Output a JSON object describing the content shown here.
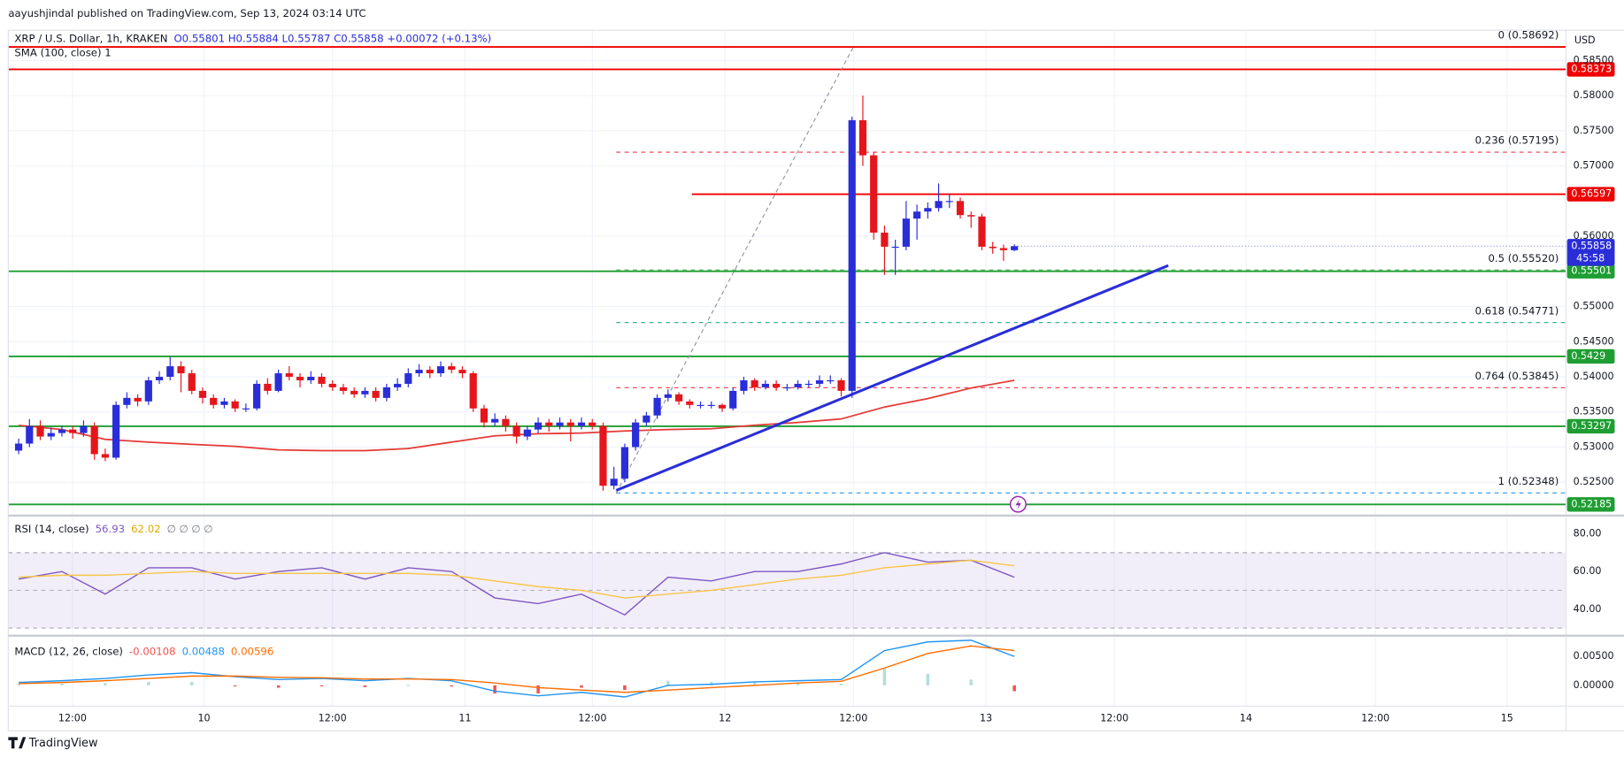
{
  "header": "aayushjindal published on TradingView.com, Sep 13, 2024 03:14 UTC",
  "footer": "TradingView",
  "chart_data": [
    {
      "type": "candlestick",
      "title": "XRP / U.S. Dollar, 1h, KRAKEN",
      "legend_ohlc": "O0.55801 H0.55884 L0.55787 C0.55858 +0.00072 (+0.13%)",
      "currency": "USD",
      "xticks": [
        "12:00",
        "10",
        "12:00",
        "11",
        "12:00",
        "12",
        "12:00",
        "13",
        "12:00",
        "14",
        "12:00",
        "15"
      ],
      "ylim": [
        0.5204,
        0.5893
      ],
      "yticks": [
        {
          "value": 0.585,
          "label": "0.58500"
        },
        {
          "value": 0.58,
          "label": "0.58000"
        },
        {
          "value": 0.575,
          "label": "0.57500"
        },
        {
          "value": 0.57,
          "label": "0.57000"
        },
        {
          "value": 0.56,
          "label": "0.56000"
        },
        {
          "value": 0.55,
          "label": "0.55000"
        },
        {
          "value": 0.545,
          "label": "0.54500"
        },
        {
          "value": 0.54,
          "label": "0.54000"
        },
        {
          "value": 0.535,
          "label": "0.53500"
        },
        {
          "value": 0.53,
          "label": "0.53000"
        },
        {
          "value": 0.525,
          "label": "0.52500"
        }
      ],
      "grid": true,
      "up_color": "#2a2ed8",
      "down_color": "#e5161b",
      "candles": [
        [
          0.5295,
          0.5312,
          0.529,
          0.5305
        ],
        [
          0.5305,
          0.534,
          0.53,
          0.533
        ],
        [
          0.533,
          0.5338,
          0.531,
          0.5315
        ],
        [
          0.5315,
          0.5328,
          0.531,
          0.532
        ],
        [
          0.532,
          0.533,
          0.5315,
          0.5325
        ],
        [
          0.5325,
          0.533,
          0.5312,
          0.532
        ],
        [
          0.532,
          0.5338,
          0.5315,
          0.533
        ],
        [
          0.533,
          0.5335,
          0.5282,
          0.529
        ],
        [
          0.529,
          0.5298,
          0.528,
          0.5285
        ],
        [
          0.5285,
          0.5365,
          0.5282,
          0.536
        ],
        [
          0.536,
          0.5378,
          0.5355,
          0.537
        ],
        [
          0.537,
          0.5375,
          0.5358,
          0.5365
        ],
        [
          0.5365,
          0.54,
          0.536,
          0.5395
        ],
        [
          0.5395,
          0.5408,
          0.539,
          0.54
        ],
        [
          0.54,
          0.5428,
          0.5395,
          0.5415
        ],
        [
          0.5415,
          0.5422,
          0.5378,
          0.5405
        ],
        [
          0.5405,
          0.541,
          0.5375,
          0.538
        ],
        [
          0.538,
          0.5385,
          0.5362,
          0.537
        ],
        [
          0.537,
          0.5375,
          0.5355,
          0.536
        ],
        [
          0.536,
          0.537,
          0.5355,
          0.5365
        ],
        [
          0.5365,
          0.5368,
          0.535,
          0.5355
        ],
        [
          0.5355,
          0.5362,
          0.535,
          0.5355
        ],
        [
          0.5355,
          0.5395,
          0.5352,
          0.539
        ],
        [
          0.539,
          0.5398,
          0.5375,
          0.538
        ],
        [
          0.538,
          0.541,
          0.5378,
          0.5405
        ],
        [
          0.5405,
          0.5415,
          0.5395,
          0.54
        ],
        [
          0.54,
          0.5405,
          0.5385,
          0.5395
        ],
        [
          0.5395,
          0.5408,
          0.539,
          0.54
        ],
        [
          0.54,
          0.5405,
          0.5385,
          0.539
        ],
        [
          0.539,
          0.5395,
          0.538,
          0.5385
        ],
        [
          0.5385,
          0.539,
          0.5375,
          0.538
        ],
        [
          0.538,
          0.5385,
          0.537,
          0.5375
        ],
        [
          0.5375,
          0.5385,
          0.537,
          0.538
        ],
        [
          0.538,
          0.5385,
          0.5365,
          0.537
        ],
        [
          0.537,
          0.539,
          0.5365,
          0.5385
        ],
        [
          0.5385,
          0.5398,
          0.538,
          0.539
        ],
        [
          0.539,
          0.5412,
          0.5385,
          0.5405
        ],
        [
          0.5405,
          0.5418,
          0.54,
          0.541
        ],
        [
          0.541,
          0.5415,
          0.5398,
          0.5405
        ],
        [
          0.5405,
          0.5422,
          0.54,
          0.5415
        ],
        [
          0.5415,
          0.542,
          0.5405,
          0.541
        ],
        [
          0.541,
          0.5415,
          0.5398,
          0.5405
        ],
        [
          0.5405,
          0.5408,
          0.535,
          0.5355
        ],
        [
          0.5355,
          0.536,
          0.5328,
          0.5335
        ],
        [
          0.5335,
          0.5348,
          0.533,
          0.534
        ],
        [
          0.534,
          0.5345,
          0.5322,
          0.533
        ],
        [
          0.533,
          0.5335,
          0.5305,
          0.5315
        ],
        [
          0.5315,
          0.533,
          0.531,
          0.5325
        ],
        [
          0.5325,
          0.5342,
          0.532,
          0.5335
        ],
        [
          0.5335,
          0.534,
          0.5322,
          0.533
        ],
        [
          0.533,
          0.5342,
          0.5325,
          0.5335
        ],
        [
          0.5335,
          0.534,
          0.5308,
          0.533
        ],
        [
          0.533,
          0.5342,
          0.5325,
          0.5335
        ],
        [
          0.5335,
          0.534,
          0.5325,
          0.533
        ],
        [
          0.533,
          0.5335,
          0.5238,
          0.5245
        ],
        [
          0.5245,
          0.5272,
          0.524,
          0.5255
        ],
        [
          0.5255,
          0.5305,
          0.525,
          0.53
        ],
        [
          0.53,
          0.534,
          0.5295,
          0.5335
        ],
        [
          0.5335,
          0.535,
          0.533,
          0.5345
        ],
        [
          0.5345,
          0.5375,
          0.534,
          0.537
        ],
        [
          0.537,
          0.5382,
          0.5365,
          0.5375
        ],
        [
          0.5375,
          0.5378,
          0.536,
          0.5365
        ],
        [
          0.5365,
          0.5368,
          0.5355,
          0.536
        ],
        [
          0.536,
          0.5365,
          0.5355,
          0.536
        ],
        [
          0.536,
          0.5365,
          0.5355,
          0.536
        ],
        [
          0.536,
          0.5362,
          0.535,
          0.5355
        ],
        [
          0.5355,
          0.5385,
          0.5352,
          0.538
        ],
        [
          0.538,
          0.54,
          0.5375,
          0.5395
        ],
        [
          0.5395,
          0.5398,
          0.538,
          0.5385
        ],
        [
          0.5385,
          0.5395,
          0.5382,
          0.539
        ],
        [
          0.539,
          0.5395,
          0.538,
          0.5385
        ],
        [
          0.5385,
          0.539,
          0.538,
          0.5385
        ],
        [
          0.5385,
          0.5395,
          0.5382,
          0.539
        ],
        [
          0.539,
          0.5395,
          0.5385,
          0.539
        ],
        [
          0.539,
          0.5402,
          0.5385,
          0.5395
        ],
        [
          0.5395,
          0.5402,
          0.539,
          0.5395
        ],
        [
          0.5395,
          0.5398,
          0.5372,
          0.538
        ],
        [
          0.538,
          0.577,
          0.537,
          0.5765
        ],
        [
          0.5765,
          0.58,
          0.57,
          0.5715
        ],
        [
          0.5715,
          0.572,
          0.5595,
          0.5605
        ],
        [
          0.5605,
          0.5615,
          0.5545,
          0.5585
        ],
        [
          0.5585,
          0.5595,
          0.5545,
          0.5585
        ],
        [
          0.5585,
          0.565,
          0.558,
          0.5625
        ],
        [
          0.5625,
          0.5645,
          0.5595,
          0.5635
        ],
        [
          0.5635,
          0.5648,
          0.5625,
          0.564
        ],
        [
          0.564,
          0.5675,
          0.5635,
          0.565
        ],
        [
          0.565,
          0.566,
          0.564,
          0.565
        ],
        [
          0.565,
          0.5655,
          0.5625,
          0.563
        ],
        [
          0.563,
          0.5635,
          0.5612,
          0.5628
        ],
        [
          0.5628,
          0.5632,
          0.558,
          0.5585
        ],
        [
          0.5585,
          0.5592,
          0.5575,
          0.5583
        ],
        [
          0.5583,
          0.5588,
          0.5565,
          0.55801
        ],
        [
          0.55801,
          0.55884,
          0.55787,
          0.55858
        ]
      ],
      "sma": {
        "name": "SMA (100, close) 1",
        "color": "#e53935",
        "values": [
          0.5331,
          0.5325,
          0.5311,
          0.5307,
          0.5304,
          0.5301,
          0.5296,
          0.5295,
          0.5295,
          0.5298,
          0.5307,
          0.5316,
          0.5319,
          0.532,
          0.5323,
          0.5325,
          0.5326,
          0.5331,
          0.5335,
          0.534,
          0.5357,
          0.5369,
          0.5384,
          0.5395
        ]
      },
      "levels": [
        {
          "value": 0.58373,
          "color": "#f00000"
        },
        {
          "value": 0.56597,
          "color": "#f00000"
        },
        {
          "value": 0.55501,
          "color": "#1e9e32"
        },
        {
          "value": 0.5429,
          "color": "#1e9e32"
        },
        {
          "value": 0.53297,
          "color": "#1e9e32"
        },
        {
          "value": 0.52185,
          "color": "#1e9e32"
        }
      ],
      "last_price": {
        "value": 0.55858,
        "countdown": "45:58",
        "color": "#2a2ed8"
      },
      "fib": [
        {
          "label": "0 (0.58692)",
          "value": 0.58692,
          "color": "#f00000",
          "label_color": "#787b86"
        },
        {
          "label": "0.236 (0.57195)",
          "value": 0.57195,
          "color": "#f23645",
          "label_color": "#f23645"
        },
        {
          "label": "0.5 (0.55520)",
          "value": 0.5552,
          "color": "#4caf50",
          "label_color": "#787b86"
        },
        {
          "label": "0.618 (0.54771)",
          "value": 0.54771,
          "color": "#22ab94",
          "label_color": "#22ab94"
        },
        {
          "label": "0.764 (0.53845)",
          "value": 0.53845,
          "color": "#f23645",
          "label_color": "#f23645"
        },
        {
          "label": "1 (0.52348)",
          "value": 0.52348,
          "color": "#2196f3",
          "label_color": "#2196f3"
        }
      ],
      "trend_line": {
        "values": [
          0.52384,
          0.55583
        ],
        "color": "#2a2ed8"
      }
    },
    {
      "type": "line",
      "title": "RSI (14, close)",
      "legend_extra": "∅ ∅ ∅ ∅",
      "ylim": [
        26.5,
        89.1
      ],
      "yticks": [
        {
          "value": 80,
          "label": "80.00"
        },
        {
          "value": 60,
          "label": "60.00"
        },
        {
          "value": 40,
          "label": "40.00"
        }
      ],
      "band": [
        30,
        70
      ],
      "midline": 50,
      "band_color": "#7e57c2",
      "series": [
        {
          "color": "#7e57c2",
          "legend_value": 56.93,
          "values": [
            56,
            60,
            48,
            62,
            62,
            56,
            60,
            62,
            56,
            62,
            60,
            46,
            43,
            48,
            37,
            57,
            55,
            60,
            60,
            64,
            70,
            65,
            66,
            57
          ]
        },
        {
          "color": "#f7c548",
          "legend_value": 62.02,
          "values": [
            57,
            58,
            58,
            59,
            60,
            59,
            59,
            59,
            59,
            59,
            58,
            55,
            52,
            50,
            46,
            48,
            50,
            53,
            56,
            58,
            62,
            64,
            66,
            63
          ]
        }
      ]
    },
    {
      "type": "macd",
      "title": "MACD (12, 26, close)",
      "ylim": [
        -0.0034,
        0.0084
      ],
      "yticks": [
        {
          "value": 0.005,
          "label": "0.00500"
        },
        {
          "value": 0,
          "label": "0.00000"
        }
      ],
      "histogram": {
        "color_up": "#b2dfdb",
        "color_down": "#ef5350",
        "legend_value": -0.00108,
        "values": [
          0.0002,
          0.0003,
          0.0004,
          0.0006,
          0.0006,
          -0.0001,
          -0.0004,
          -0.0001,
          -0.0003,
          0.0001,
          -0.0002,
          -0.0014,
          -0.0014,
          -0.0004,
          -0.0008,
          0.0008,
          0.0006,
          0.0006,
          0.0004,
          0.0003,
          0.003,
          0.002,
          0.001,
          -0.001
        ]
      },
      "series": [
        {
          "color": "#2196f3",
          "legend_value": 0.00488,
          "values": [
            0.0005,
            0.0008,
            0.0012,
            0.0018,
            0.0022,
            0.0015,
            0.001,
            0.0012,
            0.0008,
            0.0012,
            0.0008,
            -0.001,
            -0.0018,
            -0.0012,
            -0.002,
            0.0,
            0.0002,
            0.0006,
            0.0008,
            0.001,
            0.006,
            0.0075,
            0.0078,
            0.005
          ]
        },
        {
          "color": "#ff6d00",
          "legend_value": 0.00596,
          "values": [
            0.0003,
            0.0005,
            0.0008,
            0.0012,
            0.0016,
            0.0016,
            0.0014,
            0.0013,
            0.0011,
            0.0011,
            0.001,
            0.0004,
            -0.0004,
            -0.0008,
            -0.0012,
            -0.0008,
            -0.0004,
            0.0,
            0.0004,
            0.0007,
            0.003,
            0.0055,
            0.0068,
            0.006
          ]
        }
      ]
    }
  ]
}
